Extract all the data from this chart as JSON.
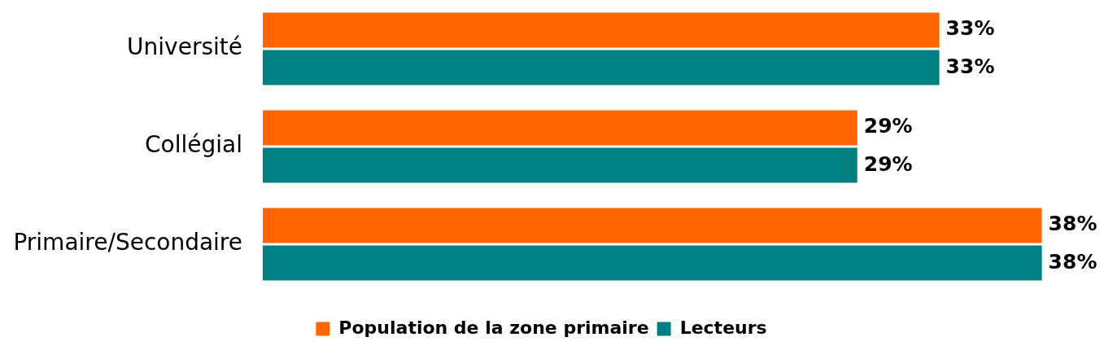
{
  "chart_data": {
    "type": "bar",
    "orientation": "horizontal",
    "categories": [
      "Université",
      "Collégial",
      "Primaire/Secondaire"
    ],
    "series": [
      {
        "name": "Population de la zone primaire",
        "color": "#ff6600",
        "values": [
          33,
          29,
          38
        ],
        "value_labels": [
          "33%",
          "29%",
          "38%"
        ]
      },
      {
        "name": "Lecteurs",
        "color": "#008080",
        "values": [
          33,
          29,
          38
        ],
        "value_labels": [
          "33%",
          "29%",
          "38%"
        ]
      }
    ],
    "legend": "bottom",
    "tick_labels": "y"
  }
}
